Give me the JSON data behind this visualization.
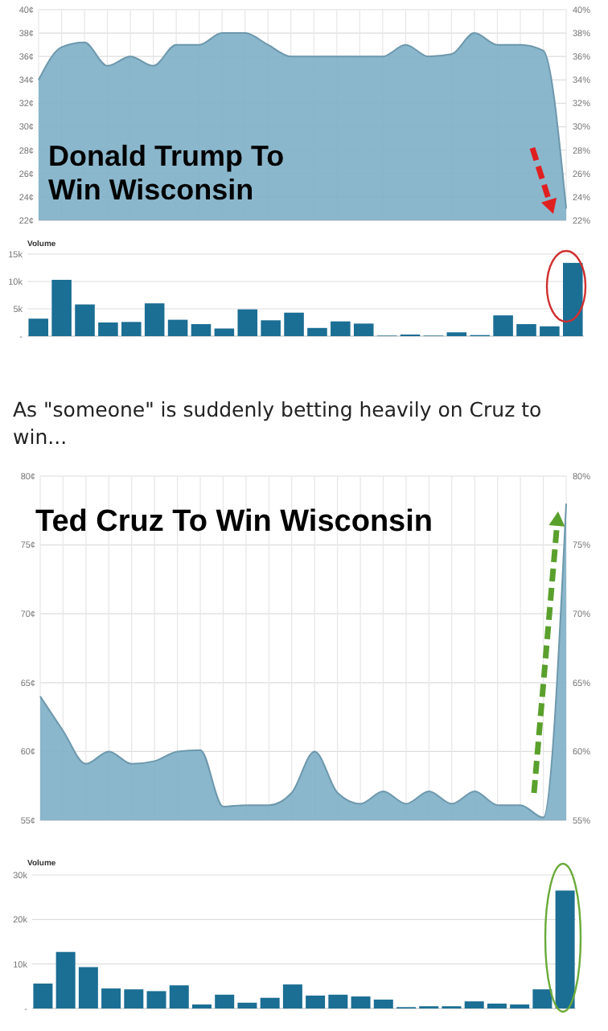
{
  "chart_data": [
    {
      "type": "area",
      "title": "Donald Trump To Win Wisconsin",
      "categories": [
        null,
        null,
        null,
        null,
        null,
        null,
        null,
        null,
        null,
        null,
        null,
        null,
        null,
        null,
        null,
        null,
        null,
        null,
        null,
        null,
        null,
        null,
        null,
        null
      ],
      "values": [
        34,
        36.8,
        37.2,
        35.2,
        36,
        35.2,
        37,
        37,
        38,
        38,
        37,
        36,
        36,
        36,
        36,
        36,
        37,
        36,
        36.2,
        38,
        37,
        37,
        36.5,
        23
      ],
      "color": "#7eafc6",
      "ylim": [
        22,
        40
      ],
      "yticks": [
        {
          "value": 22,
          "label": "22¢"
        },
        {
          "value": 24,
          "label": "24¢"
        },
        {
          "value": 26,
          "label": "26¢"
        },
        {
          "value": 28,
          "label": "28¢"
        },
        {
          "value": 30,
          "label": "30¢"
        },
        {
          "value": 32,
          "label": "32¢"
        },
        {
          "value": 34,
          "label": "34¢"
        },
        {
          "value": 36,
          "label": "36¢"
        },
        {
          "value": 38,
          "label": "38¢"
        },
        {
          "value": 40,
          "label": "40¢"
        }
      ],
      "y2lim": [
        22,
        40
      ],
      "y2ticks": [
        {
          "value": 22,
          "label": "22%"
        },
        {
          "value": 24,
          "label": "24%"
        },
        {
          "value": 26,
          "label": "26%"
        },
        {
          "value": 28,
          "label": "28%"
        },
        {
          "value": 30,
          "label": "30%"
        },
        {
          "value": 32,
          "label": "32%"
        },
        {
          "value": 34,
          "label": "34%"
        },
        {
          "value": 36,
          "label": "36%"
        },
        {
          "value": 38,
          "label": "38%"
        },
        {
          "value": 40,
          "label": "40%"
        }
      ],
      "grid": true
    },
    {
      "type": "bar",
      "title": "Volume",
      "categories": [
        null,
        null,
        null,
        null,
        null,
        null,
        null,
        null,
        null,
        null,
        null,
        null,
        null,
        null,
        null,
        null,
        null,
        null,
        null,
        null,
        null,
        null,
        null,
        null
      ],
      "values": [
        3200,
        10300,
        5800,
        2500,
        2600,
        6000,
        3000,
        2200,
        1400,
        4900,
        2900,
        4300,
        1500,
        2700,
        2300,
        100,
        300,
        100,
        700,
        200,
        3800,
        2200,
        1800,
        13400
      ],
      "color": "#1b6e94",
      "ylim": [
        0,
        15000
      ],
      "yticks": [
        {
          "value": 0,
          "label": "-"
        },
        {
          "value": 5000,
          "label": "5k"
        },
        {
          "value": 10000,
          "label": "10k"
        },
        {
          "value": 15000,
          "label": "15k"
        }
      ],
      "grid": "y"
    },
    {
      "type": "area",
      "title": "Ted Cruz To Win Wisconsin",
      "annotations": [
        "As \"someone\" is suddenly betting heavily on Cruz to win..."
      ],
      "categories": [
        null,
        null,
        null,
        null,
        null,
        null,
        null,
        null,
        null,
        null,
        null,
        null,
        null,
        null,
        null,
        null,
        null,
        null,
        null,
        null,
        null,
        null,
        null,
        null
      ],
      "values": [
        64,
        61.5,
        59.1,
        60,
        59.1,
        59.3,
        60,
        60.1,
        56,
        56.1,
        56.1,
        57,
        60,
        57,
        56.2,
        57.1,
        56.2,
        57.1,
        56.2,
        57.1,
        56.1,
        56.1,
        55.2,
        78
      ],
      "color": "#7eafc6",
      "ylim": [
        55,
        80
      ],
      "yticks": [
        {
          "value": 55,
          "label": "55¢"
        },
        {
          "value": 60,
          "label": "60¢"
        },
        {
          "value": 65,
          "label": "65¢"
        },
        {
          "value": 70,
          "label": "70¢"
        },
        {
          "value": 75,
          "label": "75¢"
        },
        {
          "value": 80,
          "label": "80¢"
        }
      ],
      "y2lim": [
        55,
        80
      ],
      "y2ticks": [
        {
          "value": 55,
          "label": "55%"
        },
        {
          "value": 60,
          "label": "60%"
        },
        {
          "value": 65,
          "label": "65%"
        },
        {
          "value": 70,
          "label": "70%"
        },
        {
          "value": 75,
          "label": "75%"
        },
        {
          "value": 80,
          "label": "80%"
        }
      ],
      "grid": true
    },
    {
      "type": "bar",
      "title": "Volume",
      "categories": [
        null,
        null,
        null,
        null,
        null,
        null,
        null,
        null,
        null,
        null,
        null,
        null,
        null,
        null,
        null,
        null,
        null,
        null,
        null,
        null,
        null,
        null,
        null,
        null
      ],
      "values": [
        5600,
        12700,
        9300,
        4500,
        4300,
        3900,
        5200,
        900,
        3100,
        1300,
        2400,
        5400,
        2900,
        3100,
        2700,
        2000,
        300,
        500,
        500,
        1600,
        1100,
        900,
        4300,
        26500
      ],
      "color": "#1b6e94",
      "ylim": [
        0,
        30000
      ],
      "yticks": [
        {
          "value": 0,
          "label": "-"
        },
        {
          "value": 10000,
          "label": "10k"
        },
        {
          "value": 20000,
          "label": "20k"
        },
        {
          "value": 30000,
          "label": "30k"
        }
      ],
      "grid": "y"
    }
  ]
}
